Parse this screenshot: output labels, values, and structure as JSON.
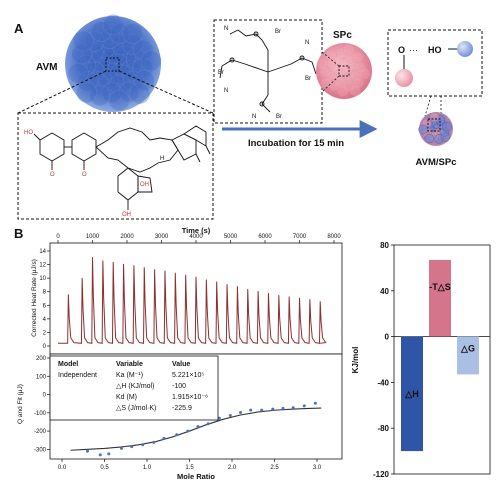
{
  "panel_a": {
    "label": "A",
    "avm_label": "AVM",
    "spc_label": "SPc",
    "complex_label": "AVM/SPc",
    "arrow_label": "Incubation for 15 min",
    "hbond_left": "O",
    "hbond_dots": "···",
    "hbond_right": "HO",
    "struct_atoms": {
      "ho": "HO",
      "o": "O",
      "h": "H",
      "oh": "OH",
      "br": "Br",
      "n": "N"
    }
  },
  "panel_b": {
    "label": "B",
    "table": {
      "headers": [
        "Model",
        "Variable",
        "Value"
      ],
      "model": "Independent",
      "rows": [
        {
          "variable": "Ka (M⁻¹)",
          "value": "5.221×10⁵"
        },
        {
          "variable": "△H (KJ/mol)",
          "value": "-100"
        },
        {
          "variable": "Kd (M)",
          "value": "1.915×10⁻⁶"
        },
        {
          "variable": "△S (J/mol·K)",
          "value": "-225.9"
        }
      ]
    }
  },
  "chart_data": [
    {
      "type": "line",
      "title": "",
      "xlabel": "Time (s)",
      "ylabel": "Corrected Heat Rate (μJ/s)",
      "xlim": [
        0,
        8000
      ],
      "ylim": [
        0,
        14
      ],
      "x_ticks": [
        0,
        1000,
        2000,
        3000,
        4000,
        5000,
        6000,
        7000,
        8000
      ],
      "y_ticks": [
        0,
        2,
        4,
        6,
        8,
        10,
        12,
        14
      ],
      "baseline": 0.4,
      "series": [
        {
          "injection_times": [
            300,
            700,
            1000,
            1300,
            1600,
            1900,
            2200,
            2500,
            2800,
            3100,
            3400,
            3700,
            4000,
            4300,
            4600,
            4900,
            5200,
            5500,
            5800,
            6100,
            6400,
            6700,
            7000,
            7300,
            7600
          ],
          "peak_heights": [
            7.6,
            10.0,
            13.1,
            12.6,
            12.4,
            12.1,
            11.9,
            11.6,
            11.3,
            11.1,
            10.8,
            10.5,
            10.2,
            9.8,
            9.5,
            9.1,
            8.8,
            8.4,
            8.1,
            7.8,
            7.5,
            7.3,
            7.1,
            6.9,
            6.6
          ]
        }
      ]
    },
    {
      "type": "scatter",
      "title": "",
      "xlabel": "Mole Ratio",
      "ylabel": "Q and Fit (μJ)",
      "xlim": [
        0,
        3.2
      ],
      "ylim": [
        -320,
        200
      ],
      "x_ticks": [
        0.0,
        0.5,
        1.0,
        1.5,
        2.0,
        2.5,
        3.0
      ],
      "y_ticks": [
        -300,
        -200,
        -100,
        0,
        100,
        200
      ],
      "points": {
        "x": [
          0.3,
          0.45,
          0.55,
          0.7,
          0.82,
          0.95,
          1.08,
          1.2,
          1.35,
          1.48,
          1.6,
          1.72,
          1.85,
          1.98,
          2.1,
          2.22,
          2.35,
          2.48,
          2.6,
          2.72,
          2.85,
          2.98
        ],
        "y": [
          -310,
          -330,
          -325,
          -295,
          -285,
          -275,
          -262,
          -240,
          -220,
          -200,
          -175,
          -160,
          -130,
          -115,
          -98,
          -85,
          -85,
          -80,
          -76,
          -72,
          -62,
          -48
        ]
      },
      "fit": {
        "x": [
          0.1,
          0.3,
          0.5,
          0.7,
          0.9,
          1.1,
          1.3,
          1.5,
          1.7,
          1.9,
          2.1,
          2.3,
          2.5,
          2.7,
          2.9,
          3.05
        ],
        "y": [
          -305,
          -300,
          -295,
          -287,
          -275,
          -258,
          -232,
          -200,
          -165,
          -135,
          -112,
          -96,
          -86,
          -80,
          -76,
          -74
        ]
      }
    },
    {
      "type": "bar",
      "title": "",
      "xlabel": "",
      "ylabel": "KJ/mol",
      "ylim": [
        -120,
        80
      ],
      "y_ticks": [
        -120,
        -80,
        -40,
        0,
        40,
        80
      ],
      "categories": [
        "△H",
        "-T△S",
        "△G"
      ],
      "values": [
        -100,
        67,
        -33
      ],
      "colors": [
        "#2f56a6",
        "#d4758b",
        "#a9bfe3"
      ]
    }
  ]
}
